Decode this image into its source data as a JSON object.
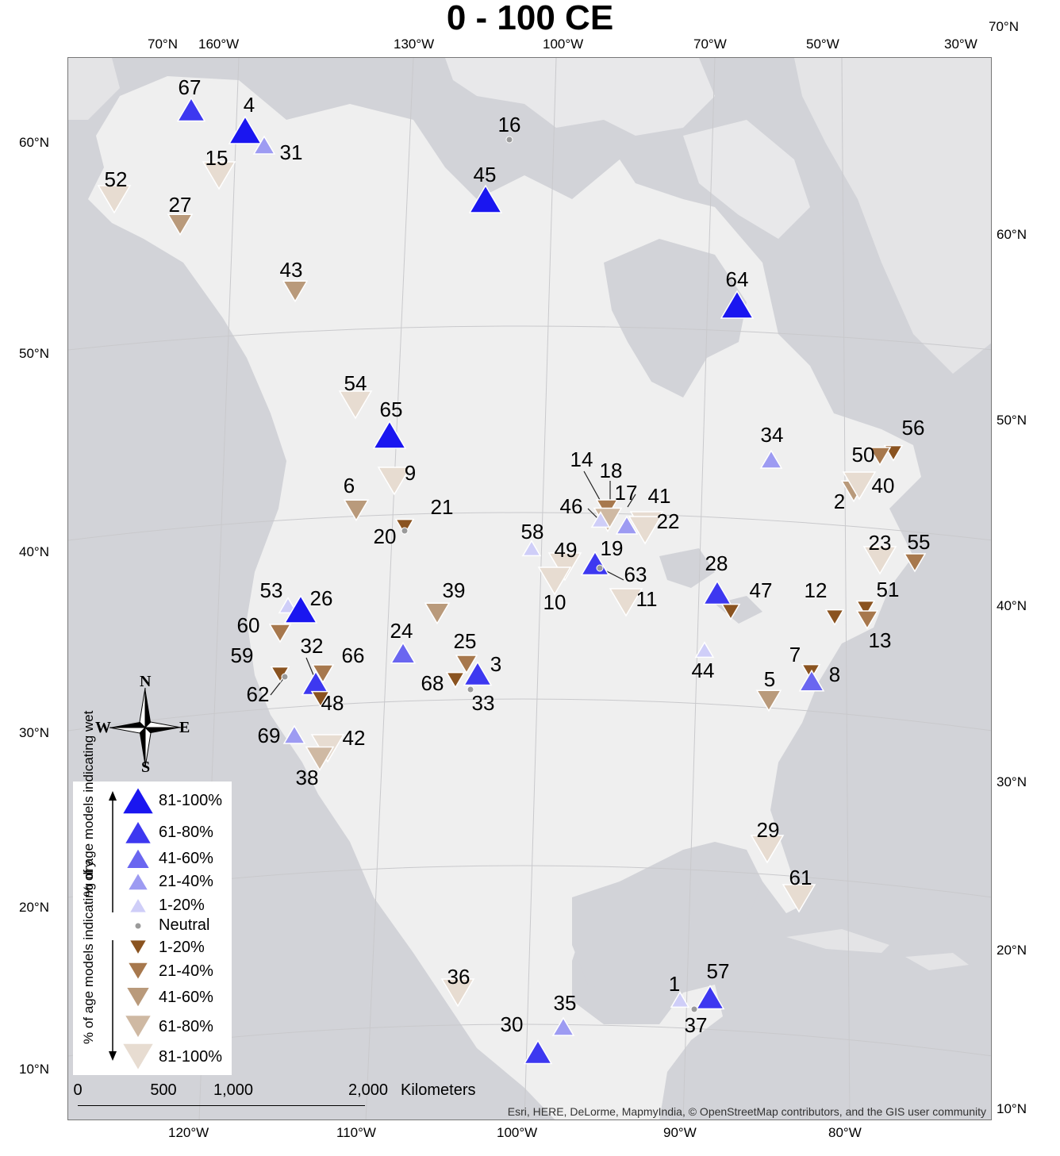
{
  "title": "0 - 100 CE",
  "longitude_labels_top": [
    "70°N",
    "160°W",
    "130°W",
    "100°W",
    "70°W",
    "50°W",
    "30°W",
    "70°N"
  ],
  "longitude_labels_bottom": [
    "120°W",
    "110°W",
    "100°W",
    "90°W",
    "80°W"
  ],
  "latitude_labels_left": [
    "60°N",
    "50°N",
    "40°N",
    "30°N",
    "20°N",
    "10°N"
  ],
  "latitude_labels_right": [
    "60°N",
    "50°N",
    "40°N",
    "30°N",
    "20°N",
    "10°N"
  ],
  "attribution": "Esri, HERE, DeLorme, MapmyIndia, © OpenStreetMap contributors, and the GIS user community",
  "scale_bar": {
    "ticks": [
      "0",
      "500",
      "1,000",
      "2,000"
    ],
    "units": "Kilometers"
  },
  "compass": {
    "n": "N",
    "s": "S",
    "e": "E",
    "w": "W"
  },
  "legend": {
    "wet_label": "% of age models indicating wet",
    "dry_label": "% of age models indicating dry",
    "wet_items": [
      "81-100%",
      "61-80%",
      "41-60%",
      "21-40%",
      "1-20%"
    ],
    "neutral": "Neutral",
    "dry_items": [
      "1-20%",
      "21-40%",
      "41-60%",
      "61-80%",
      "81-100%"
    ]
  },
  "colors": {
    "ocean": "#d2d3d8",
    "land": "#efefef",
    "wet": [
      "#1a16f0",
      "#3d38f0",
      "#6a66f0",
      "#9d9bf2",
      "#cfcef8"
    ],
    "dry": [
      "#e7dcd1",
      "#cfb9a3",
      "#b99a7b",
      "#a7784d",
      "#8a5320"
    ],
    "neutral": "#9a9a9a"
  },
  "sites": [
    {
      "id": "67",
      "kind": "wet",
      "cls": 2
    },
    {
      "id": "4",
      "kind": "wet",
      "cls": 1
    },
    {
      "id": "31",
      "kind": "wet",
      "cls": 4
    },
    {
      "id": "15",
      "kind": "dry",
      "cls": 1
    },
    {
      "id": "52",
      "kind": "dry",
      "cls": 1
    },
    {
      "id": "27",
      "kind": "dry",
      "cls": 3
    },
    {
      "id": "16",
      "kind": "neutral",
      "cls": 0
    },
    {
      "id": "45",
      "kind": "wet",
      "cls": 1
    },
    {
      "id": "43",
      "kind": "dry",
      "cls": 3
    },
    {
      "id": "64",
      "kind": "wet",
      "cls": 1
    },
    {
      "id": "54",
      "kind": "dry",
      "cls": 1
    },
    {
      "id": "65",
      "kind": "wet",
      "cls": 1
    },
    {
      "id": "9",
      "kind": "dry",
      "cls": 1
    },
    {
      "id": "6",
      "kind": "dry",
      "cls": 3
    },
    {
      "id": "21",
      "kind": "dry",
      "cls": 5
    },
    {
      "id": "20",
      "kind": "neutral",
      "cls": 0
    },
    {
      "id": "34",
      "kind": "wet",
      "cls": 4
    },
    {
      "id": "56",
      "kind": "dry",
      "cls": 5
    },
    {
      "id": "50",
      "kind": "dry",
      "cls": 4
    },
    {
      "id": "2",
      "kind": "dry",
      "cls": 3
    },
    {
      "id": "40",
      "kind": "dry",
      "cls": 1
    },
    {
      "id": "14",
      "kind": "dry",
      "cls": 4
    },
    {
      "id": "18",
      "kind": "dry",
      "cls": 2
    },
    {
      "id": "17",
      "kind": "wet",
      "cls": 4
    },
    {
      "id": "41",
      "kind": "dry",
      "cls": 1
    },
    {
      "id": "46",
      "kind": "wet",
      "cls": 5
    },
    {
      "id": "22",
      "kind": "dry",
      "cls": 1
    },
    {
      "id": "58",
      "kind": "wet",
      "cls": 5
    },
    {
      "id": "49",
      "kind": "dry",
      "cls": 1
    },
    {
      "id": "10",
      "kind": "dry",
      "cls": 1
    },
    {
      "id": "19",
      "kind": "wet",
      "cls": 2
    },
    {
      "id": "63",
      "kind": "neutral",
      "cls": 0
    },
    {
      "id": "11",
      "kind": "dry",
      "cls": 1
    },
    {
      "id": "23",
      "kind": "dry",
      "cls": 1
    },
    {
      "id": "55",
      "kind": "dry",
      "cls": 4
    },
    {
      "id": "28",
      "kind": "wet",
      "cls": 2
    },
    {
      "id": "47",
      "kind": "dry",
      "cls": 5
    },
    {
      "id": "12",
      "kind": "dry",
      "cls": 5
    },
    {
      "id": "51",
      "kind": "dry",
      "cls": 5
    },
    {
      "id": "13",
      "kind": "dry",
      "cls": 4
    },
    {
      "id": "53",
      "kind": "wet",
      "cls": 5
    },
    {
      "id": "26",
      "kind": "wet",
      "cls": 1
    },
    {
      "id": "60",
      "kind": "dry",
      "cls": 4
    },
    {
      "id": "39",
      "kind": "dry",
      "cls": 3
    },
    {
      "id": "24",
      "kind": "wet",
      "cls": 3
    },
    {
      "id": "25",
      "kind": "dry",
      "cls": 4
    },
    {
      "id": "3",
      "kind": "wet",
      "cls": 2
    },
    {
      "id": "68",
      "kind": "dry",
      "cls": 5
    },
    {
      "id": "33",
      "kind": "neutral",
      "cls": 0
    },
    {
      "id": "44",
      "kind": "wet",
      "cls": 5
    },
    {
      "id": "59",
      "kind": "dry",
      "cls": 5
    },
    {
      "id": "62",
      "kind": "neutral",
      "cls": 0
    },
    {
      "id": "32",
      "kind": "wet",
      "cls": 2
    },
    {
      "id": "66",
      "kind": "dry",
      "cls": 4
    },
    {
      "id": "48",
      "kind": "dry",
      "cls": 5
    },
    {
      "id": "7",
      "kind": "dry",
      "cls": 5
    },
    {
      "id": "8",
      "kind": "wet",
      "cls": 3
    },
    {
      "id": "5",
      "kind": "dry",
      "cls": 3
    },
    {
      "id": "69",
      "kind": "wet",
      "cls": 4
    },
    {
      "id": "42",
      "kind": "dry",
      "cls": 1
    },
    {
      "id": "38",
      "kind": "dry",
      "cls": 2
    },
    {
      "id": "29",
      "kind": "dry",
      "cls": 1
    },
    {
      "id": "61",
      "kind": "dry",
      "cls": 1
    },
    {
      "id": "36",
      "kind": "dry",
      "cls": 1
    },
    {
      "id": "35",
      "kind": "wet",
      "cls": 4
    },
    {
      "id": "30",
      "kind": "wet",
      "cls": 2
    },
    {
      "id": "1",
      "kind": "wet",
      "cls": 5
    },
    {
      "id": "57",
      "kind": "wet",
      "cls": 2
    },
    {
      "id": "37",
      "kind": "neutral",
      "cls": 0
    }
  ]
}
